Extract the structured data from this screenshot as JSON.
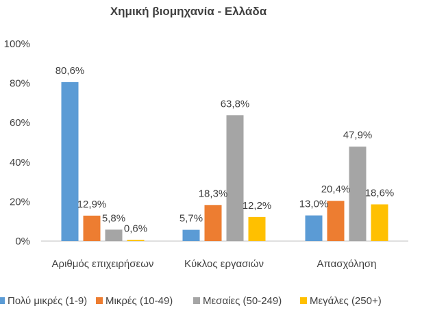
{
  "chart_data": {
    "type": "bar",
    "title": "Χημική βιομηχανία - Ελλάδα",
    "categories": [
      "Αριθμός επιχειρήσεων",
      "Κύκλος εργασιών",
      "Απασχόληση"
    ],
    "series": [
      {
        "name": "Πολύ μικρές (1-9)",
        "color": "#5B9BD5",
        "values": [
          80.6,
          5.7,
          13.0
        ],
        "labels": [
          "80,6%",
          "5,7%",
          "13,0%"
        ]
      },
      {
        "name": "Μικρές (10-49)",
        "color": "#ED7D31",
        "values": [
          12.9,
          18.3,
          20.4
        ],
        "labels": [
          "12,9%",
          "18,3%",
          "20,4%"
        ]
      },
      {
        "name": "Μεσαίες (50-249)",
        "color": "#A5A5A5",
        "values": [
          5.8,
          63.8,
          47.9
        ],
        "labels": [
          "5,8%",
          "63,8%",
          "47,9%"
        ]
      },
      {
        "name": "Μεγάλες (250+)",
        "color": "#FFC000",
        "values": [
          0.6,
          12.2,
          18.6
        ],
        "labels": [
          "0,6%",
          "12,2%",
          "18,6%"
        ]
      }
    ],
    "yticks": [
      "0%",
      "20%",
      "40%",
      "60%",
      "80%",
      "100%"
    ],
    "ylim": [
      0,
      100
    ],
    "grid": false,
    "legend": "bottom"
  }
}
